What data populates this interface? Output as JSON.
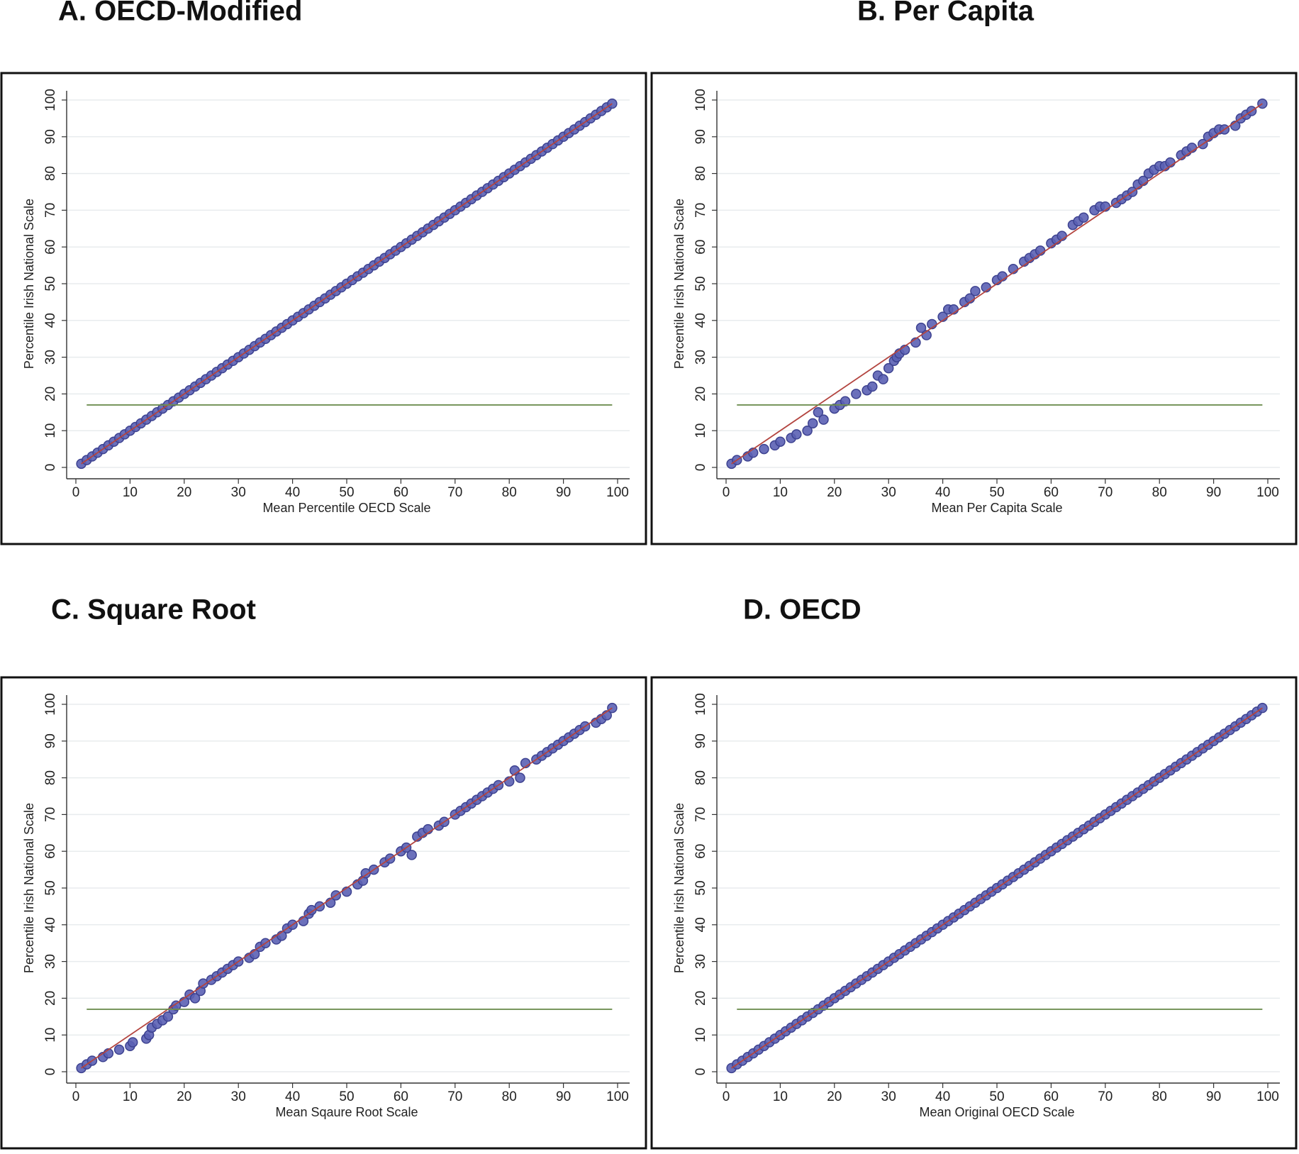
{
  "chart_data": [
    {
      "type": "scatter",
      "title": "A.   OECD-Modified",
      "xlabel": "Mean Percentile OECD Scale",
      "ylabel": "Percentile Irish National Scale",
      "x": [
        1,
        2,
        3,
        4,
        5,
        6,
        7,
        8,
        9,
        10,
        11,
        12,
        13,
        14,
        15,
        16,
        17,
        18,
        19,
        20,
        21,
        22,
        23,
        24,
        25,
        26,
        27,
        28,
        29,
        30,
        31,
        32,
        33,
        34,
        35,
        36,
        37,
        38,
        39,
        40,
        41,
        42,
        43,
        44,
        45,
        46,
        47,
        48,
        49,
        50,
        51,
        52,
        53,
        54,
        55,
        56,
        57,
        58,
        59,
        60,
        61,
        62,
        63,
        64,
        65,
        66,
        67,
        68,
        69,
        70,
        71,
        72,
        73,
        74,
        75,
        76,
        77,
        78,
        79,
        80,
        81,
        82,
        83,
        84,
        85,
        86,
        87,
        88,
        89,
        90,
        91,
        92,
        93,
        94,
        95,
        96,
        97,
        98,
        99
      ],
      "values": [
        1,
        2,
        3,
        4,
        5,
        6,
        7,
        8,
        9,
        10,
        11,
        12,
        13,
        14,
        15,
        16,
        17,
        18,
        19,
        20,
        21,
        22,
        23,
        24,
        25,
        26,
        27,
        28,
        29,
        30,
        31,
        32,
        33,
        34,
        35,
        36,
        37,
        38,
        39,
        40,
        41,
        42,
        43,
        44,
        45,
        46,
        47,
        48,
        49,
        50,
        51,
        52,
        53,
        54,
        55,
        56,
        57,
        58,
        59,
        60,
        61,
        62,
        63,
        64,
        65,
        66,
        67,
        68,
        69,
        70,
        71,
        72,
        73,
        74,
        75,
        76,
        77,
        78,
        79,
        80,
        81,
        82,
        83,
        84,
        85,
        86,
        87,
        88,
        89,
        90,
        91,
        92,
        93,
        94,
        95,
        96,
        97,
        98,
        99
      ],
      "color": "#5b60b4",
      "xlim": [
        0,
        100
      ],
      "ylim": [
        0,
        100
      ],
      "xticks": [
        0,
        10,
        20,
        30,
        40,
        50,
        60,
        70,
        80,
        90,
        100
      ],
      "yticks": [
        0,
        10,
        20,
        30,
        40,
        50,
        60,
        70,
        80,
        90,
        100
      ],
      "grid": true,
      "lines": [
        {
          "color": "#b3443f",
          "x": [
            1,
            99
          ],
          "values": [
            1,
            99
          ]
        },
        {
          "color": "#6f8f52",
          "x": [
            2,
            99
          ],
          "values": [
            17,
            17
          ]
        }
      ]
    },
    {
      "type": "scatter",
      "title": "B. Per Capita",
      "xlabel": "Mean Per Capita Scale",
      "ylabel": "Percentile Irish National  Scale",
      "x": [
        1,
        2,
        4,
        5,
        7,
        9,
        10,
        12,
        13,
        15,
        16,
        17,
        18,
        20,
        21,
        22,
        24,
        26,
        27,
        28,
        29,
        30,
        31,
        31.5,
        32,
        33,
        35,
        36,
        37,
        38,
        40,
        41,
        42,
        44,
        45,
        46,
        48,
        50,
        51,
        53,
        55,
        56,
        57,
        58,
        60,
        61,
        62,
        64,
        65,
        66,
        68,
        69,
        70,
        72,
        73,
        74,
        75,
        76,
        77,
        78,
        79,
        80,
        81,
        82,
        84,
        85,
        86,
        88,
        89,
        90,
        91,
        92,
        94,
        95,
        96,
        97,
        99
      ],
      "values": [
        1,
        2,
        3,
        4,
        5,
        6,
        7,
        8,
        9,
        10,
        12,
        15,
        13,
        16,
        17,
        18,
        20,
        21,
        22,
        25,
        24,
        27,
        29,
        30,
        31,
        32,
        34,
        38,
        36,
        39,
        41,
        43,
        43,
        45,
        46,
        48,
        49,
        51,
        52,
        54,
        56,
        57,
        58,
        59,
        61,
        62,
        63,
        66,
        67,
        68,
        70,
        71,
        71,
        72,
        73,
        74,
        75,
        77,
        78,
        80,
        81,
        82,
        82,
        83,
        85,
        86,
        87,
        88,
        90,
        91,
        92,
        92,
        93,
        95,
        96,
        97,
        99
      ],
      "color": "#5b60b4",
      "xlim": [
        0,
        100
      ],
      "ylim": [
        0,
        100
      ],
      "xticks": [
        0,
        10,
        20,
        30,
        40,
        50,
        60,
        70,
        80,
        90,
        100
      ],
      "yticks": [
        0,
        10,
        20,
        30,
        40,
        50,
        60,
        70,
        80,
        90,
        100
      ],
      "grid": true,
      "lines": [
        {
          "color": "#b3443f",
          "x": [
            1,
            99
          ],
          "values": [
            1,
            99
          ]
        },
        {
          "color": "#6f8f52",
          "x": [
            2,
            99
          ],
          "values": [
            17,
            17
          ]
        }
      ]
    },
    {
      "type": "scatter",
      "title": "C. Square Root",
      "xlabel": "Mean Sqaure Root Scale",
      "ylabel": "Percentile Irish National  Scale",
      "x": [
        1,
        2,
        3,
        5,
        6,
        8,
        10,
        10.5,
        13,
        13.5,
        14,
        15,
        16,
        17,
        18,
        18.5,
        20,
        21,
        22,
        23,
        23.5,
        25,
        26,
        27,
        28,
        29,
        30,
        32,
        33,
        34,
        35,
        37,
        38,
        39,
        40,
        42,
        43,
        43.5,
        45,
        47,
        48,
        50,
        52,
        53,
        53.5,
        55,
        57,
        58,
        60,
        61,
        62,
        63,
        64,
        65,
        67,
        68,
        70,
        71,
        72,
        73,
        74,
        75,
        76,
        77,
        78,
        80,
        81,
        82,
        83,
        85,
        86,
        87,
        88,
        89,
        90,
        91,
        92,
        93,
        94,
        96,
        97,
        98,
        99
      ],
      "values": [
        1,
        2,
        3,
        4,
        5,
        6,
        7,
        8,
        9,
        10,
        12,
        13,
        14,
        15,
        17,
        18,
        19,
        21,
        20,
        22,
        24,
        25,
        26,
        27,
        28,
        29,
        30,
        31,
        32,
        34,
        35,
        36,
        37,
        39,
        40,
        41,
        43,
        44,
        45,
        46,
        48,
        49,
        51,
        52,
        54,
        55,
        57,
        58,
        60,
        61,
        59,
        64,
        65,
        66,
        67,
        68,
        70,
        71,
        72,
        73,
        74,
        75,
        76,
        77,
        78,
        79,
        82,
        80,
        84,
        85,
        86,
        87,
        88,
        89,
        90,
        91,
        92,
        93,
        94,
        95,
        96,
        97,
        99
      ],
      "color": "#5b60b4",
      "xlim": [
        0,
        100
      ],
      "ylim": [
        0,
        100
      ],
      "xticks": [
        0,
        10,
        20,
        30,
        40,
        50,
        60,
        70,
        80,
        90,
        100
      ],
      "yticks": [
        0,
        10,
        20,
        30,
        40,
        50,
        60,
        70,
        80,
        90,
        100
      ],
      "grid": true,
      "lines": [
        {
          "color": "#b3443f",
          "x": [
            1,
            99
          ],
          "values": [
            1,
            99
          ]
        },
        {
          "color": "#6f8f52",
          "x": [
            2,
            99
          ],
          "values": [
            17,
            17
          ]
        }
      ]
    },
    {
      "type": "scatter",
      "title": "D. OECD",
      "xlabel": "Mean Original OECD Scale",
      "ylabel": "Percentile Irish National  Scale",
      "x": [
        1,
        2,
        3,
        4,
        5,
        6,
        7,
        8,
        9,
        10,
        11,
        12,
        13,
        14,
        15,
        16,
        17,
        18,
        19,
        20,
        21,
        22,
        23,
        24,
        25,
        26,
        27,
        28,
        29,
        30,
        31,
        32,
        33,
        34,
        35,
        36,
        37,
        38,
        39,
        40,
        41,
        42,
        43,
        44,
        45,
        46,
        47,
        48,
        49,
        50,
        51,
        52,
        53,
        54,
        55,
        56,
        57,
        58,
        59,
        60,
        61,
        62,
        63,
        64,
        65,
        66,
        67,
        68,
        69,
        70,
        71,
        72,
        73,
        74,
        75,
        76,
        77,
        78,
        79,
        80,
        81,
        82,
        83,
        84,
        85,
        86,
        87,
        88,
        89,
        90,
        91,
        92,
        93,
        94,
        95,
        96,
        97,
        98,
        99
      ],
      "values": [
        1,
        2,
        3,
        4,
        5,
        6,
        7,
        8,
        9,
        10,
        11,
        12,
        13,
        14,
        15,
        16,
        17,
        18,
        19,
        20,
        21,
        22,
        23,
        24,
        25,
        26,
        27,
        28,
        29,
        30,
        31,
        32,
        33,
        34,
        35,
        36,
        37,
        38,
        39,
        40,
        41,
        42,
        43,
        44,
        45,
        46,
        47,
        48,
        49,
        50,
        51,
        52,
        53,
        54,
        55,
        56,
        57,
        58,
        59,
        60,
        61,
        62,
        63,
        64,
        65,
        66,
        67,
        68,
        69,
        70,
        71,
        72,
        73,
        74,
        75,
        76,
        77,
        78,
        79,
        80,
        81,
        82,
        83,
        84,
        85,
        86,
        87,
        88,
        89,
        90,
        91,
        92,
        93,
        94,
        95,
        96,
        97,
        98,
        99
      ],
      "color": "#5b60b4",
      "xlim": [
        0,
        100
      ],
      "ylim": [
        0,
        100
      ],
      "xticks": [
        0,
        10,
        20,
        30,
        40,
        50,
        60,
        70,
        80,
        90,
        100
      ],
      "yticks": [
        0,
        10,
        20,
        30,
        40,
        50,
        60,
        70,
        80,
        90,
        100
      ],
      "grid": true,
      "lines": [
        {
          "color": "#b3443f",
          "x": [
            1,
            99
          ],
          "values": [
            1,
            99
          ]
        },
        {
          "color": "#6f8f52",
          "x": [
            2,
            99
          ],
          "values": [
            17,
            17
          ]
        }
      ]
    }
  ]
}
